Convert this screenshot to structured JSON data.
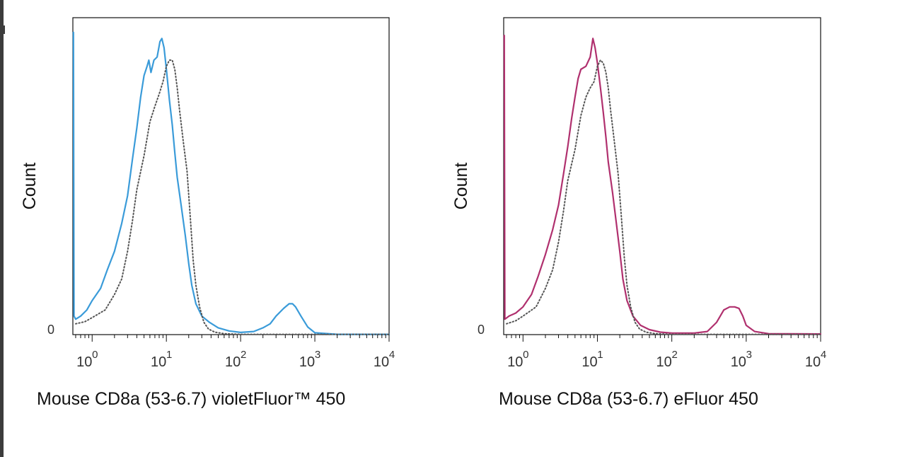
{
  "chart_data": [
    {
      "type": "line",
      "title": "",
      "xlabel": "Mouse CD8a (53-6.7) violetFluor™ 450",
      "ylabel": "Count",
      "x_scale": "log",
      "xlim": [
        0.55,
        10000
      ],
      "ylim": [
        0,
        100
      ],
      "x_ticks": [
        {
          "base": "10",
          "exp": "0",
          "value": 1
        },
        {
          "base": "10",
          "exp": "1",
          "value": 10
        },
        {
          "base": "10",
          "exp": "2",
          "value": 100
        },
        {
          "base": "10",
          "exp": "3",
          "value": 1000
        },
        {
          "base": "10",
          "exp": "4",
          "value": 10000
        }
      ],
      "y_ticks": [
        {
          "label": "0",
          "value": 0
        }
      ],
      "grid": false,
      "series": [
        {
          "color": "#3a9bd9",
          "style": "solid",
          "points": [
            [
              0.56,
              98
            ],
            [
              0.57,
              6
            ],
            [
              0.6,
              5
            ],
            [
              0.7,
              6
            ],
            [
              0.85,
              8
            ],
            [
              1.0,
              11
            ],
            [
              1.3,
              15
            ],
            [
              1.6,
              21
            ],
            [
              2.0,
              27
            ],
            [
              2.5,
              36
            ],
            [
              3.0,
              45
            ],
            [
              3.5,
              57
            ],
            [
              4.0,
              67
            ],
            [
              4.5,
              77
            ],
            [
              5.0,
              84
            ],
            [
              5.5,
              87
            ],
            [
              5.8,
              89
            ],
            [
              6.2,
              85
            ],
            [
              6.8,
              89
            ],
            [
              7.5,
              90
            ],
            [
              8.2,
              95
            ],
            [
              8.7,
              96
            ],
            [
              9.3,
              93
            ],
            [
              10,
              86
            ],
            [
              11,
              76
            ],
            [
              12,
              68
            ],
            [
              13,
              59
            ],
            [
              14,
              51
            ],
            [
              16,
              41
            ],
            [
              18,
              32
            ],
            [
              20,
              23
            ],
            [
              22,
              16
            ],
            [
              25,
              10
            ],
            [
              30,
              6
            ],
            [
              38,
              4
            ],
            [
              50,
              2.2
            ],
            [
              70,
              1.2
            ],
            [
              100,
              0.7
            ],
            [
              150,
              1.0
            ],
            [
              200,
              2.2
            ],
            [
              250,
              3.5
            ],
            [
              300,
              6
            ],
            [
              380,
              8.5
            ],
            [
              450,
              10
            ],
            [
              500,
              10
            ],
            [
              550,
              9
            ],
            [
              650,
              6
            ],
            [
              800,
              2.5
            ],
            [
              1000,
              0.6
            ],
            [
              2000,
              0.1
            ],
            [
              10000,
              0.1
            ]
          ]
        },
        {
          "color": "#555555",
          "style": "dotted",
          "points": [
            [
              0.6,
              3.5
            ],
            [
              0.8,
              4.2
            ],
            [
              1.0,
              5.5
            ],
            [
              1.5,
              8
            ],
            [
              2.0,
              13
            ],
            [
              2.5,
              18
            ],
            [
              3.0,
              27
            ],
            [
              3.5,
              37
            ],
            [
              4.0,
              47
            ],
            [
              5.0,
              58
            ],
            [
              6.0,
              69
            ],
            [
              7.0,
              74
            ],
            [
              8.0,
              78
            ],
            [
              9.0,
              82
            ],
            [
              10,
              87
            ],
            [
              11,
              89
            ],
            [
              12,
              89
            ],
            [
              13,
              86
            ],
            [
              14,
              80
            ],
            [
              15,
              73
            ],
            [
              17,
              62
            ],
            [
              19,
              53
            ],
            [
              21,
              38
            ],
            [
              23,
              24
            ],
            [
              25,
              16
            ],
            [
              28,
              9
            ],
            [
              32,
              4
            ],
            [
              37,
              1.8
            ],
            [
              45,
              0.8
            ],
            [
              60,
              0.3
            ],
            [
              100,
              0.1
            ],
            [
              10000,
              0.1
            ]
          ]
        }
      ]
    },
    {
      "type": "line",
      "title": "",
      "xlabel": "Mouse CD8a (53-6.7) eFluor 450",
      "ylabel": "Count",
      "x_scale": "log",
      "xlim": [
        0.55,
        10000
      ],
      "ylim": [
        0,
        100
      ],
      "x_ticks": [
        {
          "base": "10",
          "exp": "0",
          "value": 1
        },
        {
          "base": "10",
          "exp": "1",
          "value": 10
        },
        {
          "base": "10",
          "exp": "2",
          "value": 100
        },
        {
          "base": "10",
          "exp": "3",
          "value": 1000
        },
        {
          "base": "10",
          "exp": "4",
          "value": 10000
        }
      ],
      "y_ticks": [
        {
          "label": "0",
          "value": 0
        }
      ],
      "grid": false,
      "series": [
        {
          "color": "#b0306e",
          "style": "solid",
          "points": [
            [
              0.56,
              97
            ],
            [
              0.57,
              5
            ],
            [
              0.65,
              6
            ],
            [
              0.8,
              7
            ],
            [
              1.0,
              9
            ],
            [
              1.3,
              13
            ],
            [
              1.6,
              19
            ],
            [
              2.0,
              26
            ],
            [
              2.5,
              34
            ],
            [
              3.0,
              42
            ],
            [
              3.5,
              52
            ],
            [
              4.0,
              61
            ],
            [
              4.5,
              70
            ],
            [
              5.0,
              77
            ],
            [
              5.5,
              83
            ],
            [
              6.0,
              86
            ],
            [
              7.0,
              87
            ],
            [
              8.0,
              90
            ],
            [
              8.7,
              96
            ],
            [
              9.3,
              93
            ],
            [
              10,
              88
            ],
            [
              11,
              80
            ],
            [
              12,
              72
            ],
            [
              13,
              64
            ],
            [
              14,
              56
            ],
            [
              16,
              46
            ],
            [
              18,
              36
            ],
            [
              20,
              27
            ],
            [
              22,
              18
            ],
            [
              25,
              11
            ],
            [
              30,
              6
            ],
            [
              38,
              3
            ],
            [
              50,
              1.6
            ],
            [
              70,
              0.8
            ],
            [
              100,
              0.5
            ],
            [
              200,
              0.5
            ],
            [
              300,
              1.0
            ],
            [
              400,
              4
            ],
            [
              500,
              8
            ],
            [
              600,
              9
            ],
            [
              700,
              9
            ],
            [
              800,
              8.5
            ],
            [
              900,
              6
            ],
            [
              1000,
              3
            ],
            [
              1300,
              1
            ],
            [
              2000,
              0.3
            ],
            [
              10000,
              0.2
            ]
          ]
        },
        {
          "color": "#555555",
          "style": "dotted",
          "points": [
            [
              0.6,
              3.5
            ],
            [
              0.8,
              4.5
            ],
            [
              1.0,
              6
            ],
            [
              1.5,
              9
            ],
            [
              2.0,
              15
            ],
            [
              2.5,
              21
            ],
            [
              3.0,
              30
            ],
            [
              3.5,
              40
            ],
            [
              4.0,
              50
            ],
            [
              5.0,
              60
            ],
            [
              6.0,
              71
            ],
            [
              7.0,
              77
            ],
            [
              8.0,
              80
            ],
            [
              9.0,
              82
            ],
            [
              10,
              87
            ],
            [
              11,
              89
            ],
            [
              12,
              88
            ],
            [
              13,
              85
            ],
            [
              14,
              80
            ],
            [
              15,
              73
            ],
            [
              17,
              62
            ],
            [
              19,
              52
            ],
            [
              21,
              38
            ],
            [
              23,
              25
            ],
            [
              25,
              16
            ],
            [
              28,
              9
            ],
            [
              32,
              4
            ],
            [
              37,
              1.8
            ],
            [
              45,
              0.8
            ],
            [
              60,
              0.3
            ],
            [
              100,
              0.1
            ],
            [
              10000,
              0.1
            ]
          ]
        }
      ]
    }
  ]
}
